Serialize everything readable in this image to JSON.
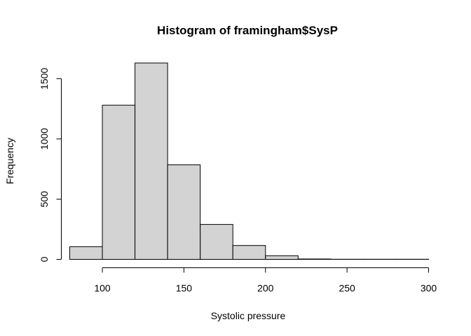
{
  "chart_data": {
    "type": "bar",
    "title": "Histogram of framingham$SysP",
    "xlabel": "Systolic pressure",
    "ylabel": "Frequency",
    "xlim": [
      80,
      300
    ],
    "ylim": [
      0,
      1630
    ],
    "x_ticks": [
      100,
      150,
      200,
      250,
      300
    ],
    "y_ticks": [
      0,
      500,
      1000,
      1500
    ],
    "bins": [
      {
        "start": 80,
        "end": 100,
        "count": 105
      },
      {
        "start": 100,
        "end": 120,
        "count": 1280
      },
      {
        "start": 120,
        "end": 140,
        "count": 1630
      },
      {
        "start": 140,
        "end": 160,
        "count": 785
      },
      {
        "start": 160,
        "end": 180,
        "count": 290
      },
      {
        "start": 180,
        "end": 200,
        "count": 115
      },
      {
        "start": 200,
        "end": 220,
        "count": 30
      },
      {
        "start": 220,
        "end": 240,
        "count": 3
      },
      {
        "start": 240,
        "end": 260,
        "count": 1
      },
      {
        "start": 260,
        "end": 280,
        "count": 1
      },
      {
        "start": 280,
        "end": 300,
        "count": 1
      }
    ],
    "bar_color": "#d3d3d3",
    "grid": false,
    "legend": false
  }
}
